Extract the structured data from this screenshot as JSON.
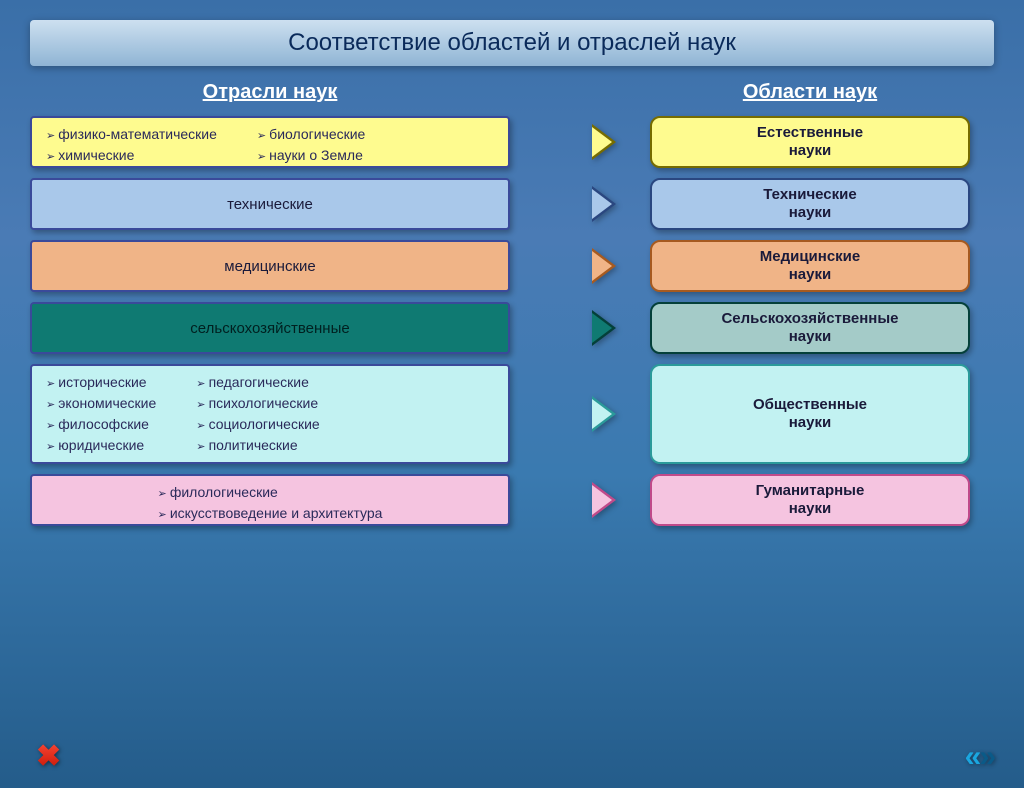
{
  "title": "Соответствие областей и отраслей наук",
  "headers": {
    "left": "Отрасли наук",
    "right": "Области наук"
  },
  "rows": [
    {
      "branch_height": 52,
      "bg": "#fefb8f",
      "border": "#3a4a9a",
      "arrow_fill": "#fefb8f",
      "arrow_border": "#766c00",
      "field_bg": "#fefb8f",
      "field_border": "#766c00",
      "field_label": "Естественные\nнауки",
      "type": "list",
      "cols": [
        [
          "физико-математические",
          "химические"
        ],
        [
          "биологические",
          "науки о Земле"
        ]
      ]
    },
    {
      "branch_height": 52,
      "bg": "#a9c8ea",
      "border": "#3a4a9a",
      "arrow_fill": "#a9c8ea",
      "arrow_border": "#2a4780",
      "field_bg": "#a9c8ea",
      "field_border": "#2a4780",
      "field_label": "Технические\nнауки",
      "type": "center",
      "label": "технические"
    },
    {
      "branch_height": 52,
      "bg": "#f0b487",
      "border": "#3a4a9a",
      "arrow_fill": "#f0b487",
      "arrow_border": "#a65a20",
      "field_bg": "#f0b487",
      "field_border": "#a65a20",
      "field_label": "Медицинские\nнауки",
      "type": "center",
      "label": "медицинские"
    },
    {
      "branch_height": 52,
      "bg": "#0f7a72",
      "border": "#3a4a9a",
      "text_color": "#002020",
      "arrow_fill": "#0f7a72",
      "arrow_border": "#04403a",
      "field_bg": "#a4cbc8",
      "field_border": "#04403a",
      "field_label": "Сельскохозяйственные\nнауки",
      "type": "center",
      "label": "сельскохозяйственные"
    },
    {
      "branch_height": 100,
      "bg": "#c2f2f2",
      "border": "#3a4a9a",
      "arrow_fill": "#c2f2f2",
      "arrow_border": "#2a9a9a",
      "field_bg": "#c2f2f2",
      "field_border": "#2a9a9a",
      "field_label": "Общественные\nнауки",
      "type": "list",
      "cols": [
        [
          "исторические",
          "экономические",
          "философские",
          "юридические"
        ],
        [
          "педагогические",
          "психологические",
          "социологические",
          "политические"
        ]
      ]
    },
    {
      "branch_height": 52,
      "bg": "#f5c4e0",
      "border": "#3a4a9a",
      "arrow_fill": "#f5c4e0",
      "arrow_border": "#c04a8a",
      "field_bg": "#f5c4e0",
      "field_border": "#c04a8a",
      "field_label": "Гуманитарные\nнауки",
      "type": "list",
      "cols": [
        [
          "филологические",
          "искусствоведение и архитектура"
        ]
      ],
      "single_col_center": true
    }
  ],
  "nav": {
    "close_color_top": "#ff4b3a",
    "prev_color": "#1aa6e0",
    "next_color": "#0a5a88"
  }
}
